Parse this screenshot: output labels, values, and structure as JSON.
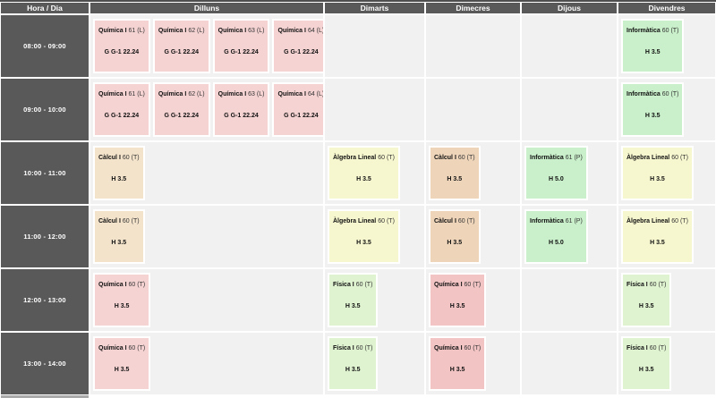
{
  "colors": {
    "header_bg": "#595959",
    "cell_bg": "#f1f1f1",
    "pink": "#f6d3d3",
    "pinkDark": "#f2c4c4",
    "beige": "#f4e3cb",
    "beigeDark": "#eed5ba",
    "yellow": "#f7f7cf",
    "mint": "#c9f0ca",
    "green": "#dff3d0"
  },
  "table": {
    "corner_header": "Hora / Dia",
    "days": [
      "Dilluns",
      "Dimarts",
      "Dimecres",
      "Dijous",
      "Divendres"
    ],
    "rows": [
      {
        "time": "08:00 - 09:00",
        "days": [
          {
            "events": [
              {
                "title": "Química I",
                "meta": "61 (L)",
                "room": "G G-1 22.24",
                "color": "pink"
              },
              {
                "title": "Química I",
                "meta": "62 (L)",
                "room": "G G-1 22.24",
                "color": "pink"
              },
              {
                "title": "Química I",
                "meta": "63 (L)",
                "room": "G G-1 22.24",
                "color": "pink"
              },
              {
                "title": "Química I",
                "meta": "64 (L)",
                "room": "G G-1 22.24",
                "color": "pink"
              }
            ]
          },
          {
            "events": []
          },
          {
            "events": []
          },
          {
            "events": []
          },
          {
            "events": [
              {
                "title": "Informàtica",
                "meta": "60 (T)",
                "room": "H 3.5",
                "color": "mint"
              }
            ]
          }
        ]
      },
      {
        "time": "09:00 - 10:00",
        "days": [
          {
            "events": [
              {
                "title": "Química I",
                "meta": "61 (L)",
                "room": "G G-1 22.24",
                "color": "pink"
              },
              {
                "title": "Química I",
                "meta": "62 (L)",
                "room": "G G-1 22.24",
                "color": "pink"
              },
              {
                "title": "Química I",
                "meta": "63 (L)",
                "room": "G G-1 22.24",
                "color": "pink"
              },
              {
                "title": "Química I",
                "meta": "64 (L)",
                "room": "G G-1 22.24",
                "color": "pink"
              }
            ]
          },
          {
            "events": []
          },
          {
            "events": []
          },
          {
            "events": []
          },
          {
            "events": [
              {
                "title": "Informàtica",
                "meta": "60 (T)",
                "room": "H 3.5",
                "color": "mint"
              }
            ]
          }
        ]
      },
      {
        "time": "10:00 - 11:00",
        "days": [
          {
            "events": [
              {
                "title": "Càlcul I",
                "meta": "60 (T)",
                "room": "H 3.5",
                "color": "beige"
              }
            ]
          },
          {
            "events": [
              {
                "title": "Àlgebra Lineal",
                "meta": "60 (T)",
                "room": "H 3.5",
                "color": "yellow"
              }
            ]
          },
          {
            "events": [
              {
                "title": "Càlcul I",
                "meta": "60 (T)",
                "room": "H 3.5",
                "color": "beigeDark"
              }
            ]
          },
          {
            "events": [
              {
                "title": "Informàtica",
                "meta": "61 (P)",
                "room": "H 5.0",
                "color": "mint"
              }
            ]
          },
          {
            "events": [
              {
                "title": "Àlgebra Lineal",
                "meta": "60 (T)",
                "room": "H 3.5",
                "color": "yellow"
              }
            ]
          }
        ]
      },
      {
        "time": "11:00 - 12:00",
        "days": [
          {
            "events": [
              {
                "title": "Càlcul I",
                "meta": "60 (T)",
                "room": "H 3.5",
                "color": "beige"
              }
            ]
          },
          {
            "events": [
              {
                "title": "Àlgebra Lineal",
                "meta": "60 (T)",
                "room": "H 3.5",
                "color": "yellow"
              }
            ]
          },
          {
            "events": [
              {
                "title": "Càlcul I",
                "meta": "60 (T)",
                "room": "H 3.5",
                "color": "beigeDark"
              }
            ]
          },
          {
            "events": [
              {
                "title": "Informàtica",
                "meta": "61 (P)",
                "room": "H 5.0",
                "color": "mint"
              }
            ]
          },
          {
            "events": [
              {
                "title": "Àlgebra Lineal",
                "meta": "60 (T)",
                "room": "H 3.5",
                "color": "yellow"
              }
            ]
          }
        ]
      },
      {
        "time": "12:00 - 13:00",
        "days": [
          {
            "events": [
              {
                "title": "Química I",
                "meta": "60 (T)",
                "room": "H 3.5",
                "color": "pink"
              }
            ]
          },
          {
            "events": [
              {
                "title": "Física I",
                "meta": "60 (T)",
                "room": "H 3.5",
                "color": "green"
              }
            ]
          },
          {
            "events": [
              {
                "title": "Química I",
                "meta": "60 (T)",
                "room": "H 3.5",
                "color": "pinkDark"
              }
            ]
          },
          {
            "events": []
          },
          {
            "events": [
              {
                "title": "Física I",
                "meta": "60 (T)",
                "room": "H 3.5",
                "color": "green"
              }
            ]
          }
        ]
      },
      {
        "time": "13:00 - 14:00",
        "days": [
          {
            "events": [
              {
                "title": "Química I",
                "meta": "60 (T)",
                "room": "H 3.5",
                "color": "pink"
              }
            ]
          },
          {
            "events": [
              {
                "title": "Física I",
                "meta": "60 (T)",
                "room": "H 3.5",
                "color": "green"
              }
            ]
          },
          {
            "events": [
              {
                "title": "Química I",
                "meta": "60 (T)",
                "room": "H 3.5",
                "color": "pinkDark"
              }
            ]
          },
          {
            "events": []
          },
          {
            "events": [
              {
                "title": "Física I",
                "meta": "60 (T)",
                "room": "H 3.5",
                "color": "green"
              }
            ]
          }
        ]
      }
    ]
  }
}
